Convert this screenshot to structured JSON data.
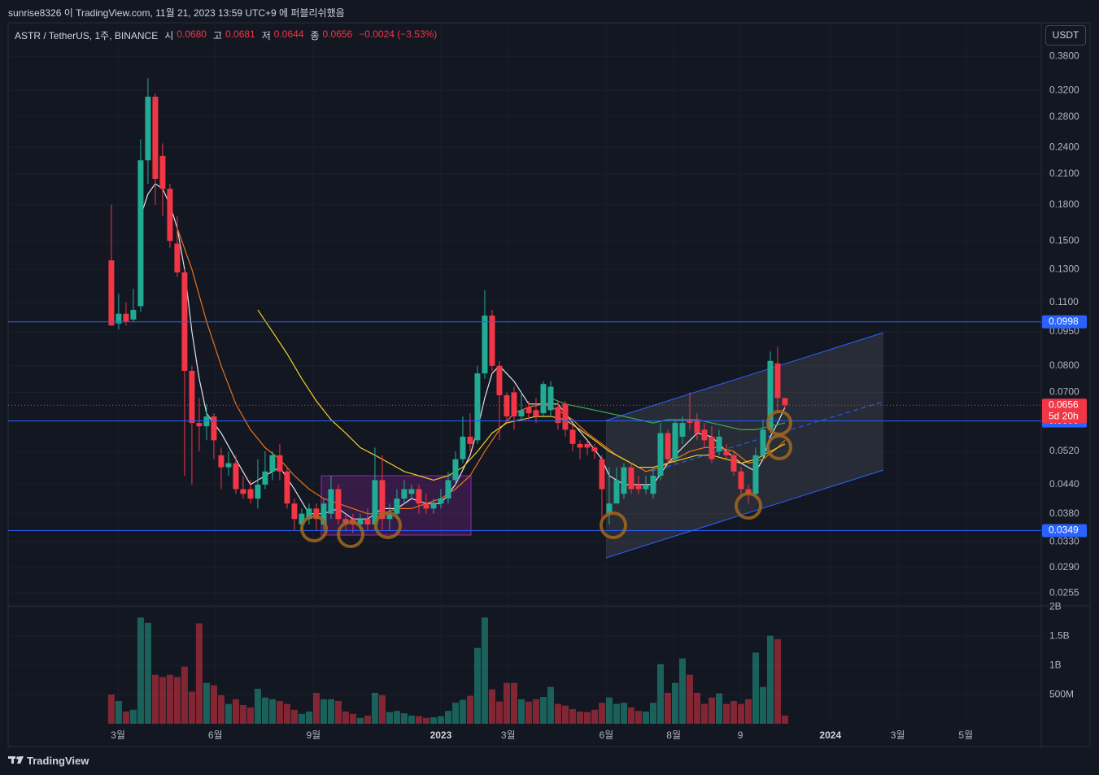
{
  "header": {
    "publisher": "sunrise8326 이 TradingView.com, 11월 21, 2023 13:59 UTC+9 에 퍼블리쉬했음",
    "symbol": "ASTR / TetherUS, 1주, BINANCE",
    "ohlc_names": [
      "시",
      "고",
      "저",
      "종"
    ],
    "ohlc_labels": [
      "0.0680",
      "0.0681",
      "0.0644",
      "0.0656"
    ],
    "change": "−0.0024 (−3.53%)",
    "currency": "USDT"
  },
  "chart_data": {
    "type": "candlestick",
    "log_scale": true,
    "grid": true,
    "up_color": "#22ab94",
    "down_color": "#f23645",
    "candles": [
      [
        0.136,
        0.18,
        0.098,
        0.098
      ],
      [
        0.099,
        0.115,
        0.096,
        0.104
      ],
      [
        0.104,
        0.11,
        0.098,
        0.1
      ],
      [
        0.101,
        0.118,
        0.1,
        0.106
      ],
      [
        0.108,
        0.25,
        0.105,
        0.225
      ],
      [
        0.225,
        0.34,
        0.2,
        0.31
      ],
      [
        0.31,
        0.315,
        0.18,
        0.205
      ],
      [
        0.23,
        0.245,
        0.17,
        0.195
      ],
      [
        0.195,
        0.2,
        0.145,
        0.15
      ],
      [
        0.148,
        0.17,
        0.125,
        0.128
      ],
      [
        0.128,
        0.13,
        0.046,
        0.078
      ],
      [
        0.078,
        0.08,
        0.044,
        0.06
      ],
      [
        0.06,
        0.068,
        0.052,
        0.059
      ],
      [
        0.059,
        0.066,
        0.055,
        0.062
      ],
      [
        0.062,
        0.063,
        0.05,
        0.055
      ],
      [
        0.051,
        0.053,
        0.043,
        0.048
      ],
      [
        0.048,
        0.052,
        0.046,
        0.049
      ],
      [
        0.049,
        0.051,
        0.042,
        0.043
      ],
      [
        0.043,
        0.046,
        0.041,
        0.042
      ],
      [
        0.043,
        0.045,
        0.04,
        0.041
      ],
      [
        0.041,
        0.05,
        0.039,
        0.044
      ],
      [
        0.044,
        0.052,
        0.043,
        0.047
      ],
      [
        0.047,
        0.052,
        0.045,
        0.051
      ],
      [
        0.051,
        0.054,
        0.045,
        0.047
      ],
      [
        0.047,
        0.048,
        0.039,
        0.04
      ],
      [
        0.04,
        0.041,
        0.035,
        0.037
      ],
      [
        0.036,
        0.039,
        0.035,
        0.038
      ],
      [
        0.037,
        0.04,
        0.036,
        0.039
      ],
      [
        0.039,
        0.04,
        0.035,
        0.037
      ],
      [
        0.036,
        0.041,
        0.035,
        0.04
      ],
      [
        0.038,
        0.046,
        0.037,
        0.043
      ],
      [
        0.043,
        0.044,
        0.036,
        0.037
      ],
      [
        0.037,
        0.038,
        0.035,
        0.036
      ],
      [
        0.037,
        0.038,
        0.0345,
        0.036
      ],
      [
        0.036,
        0.038,
        0.035,
        0.037
      ],
      [
        0.037,
        0.039,
        0.035,
        0.036
      ],
      [
        0.036,
        0.053,
        0.035,
        0.045
      ],
      [
        0.045,
        0.051,
        0.035,
        0.037
      ],
      [
        0.037,
        0.04,
        0.035,
        0.038
      ],
      [
        0.038,
        0.043,
        0.037,
        0.041
      ],
      [
        0.041,
        0.045,
        0.04,
        0.043
      ],
      [
        0.042,
        0.044,
        0.041,
        0.043
      ],
      [
        0.043,
        0.044,
        0.038,
        0.04
      ],
      [
        0.04,
        0.042,
        0.038,
        0.039
      ],
      [
        0.039,
        0.041,
        0.038,
        0.04
      ],
      [
        0.04,
        0.043,
        0.039,
        0.041
      ],
      [
        0.041,
        0.047,
        0.04,
        0.045
      ],
      [
        0.045,
        0.052,
        0.044,
        0.05
      ],
      [
        0.05,
        0.062,
        0.049,
        0.056
      ],
      [
        0.056,
        0.063,
        0.052,
        0.054
      ],
      [
        0.055,
        0.08,
        0.054,
        0.077
      ],
      [
        0.077,
        0.117,
        0.075,
        0.103
      ],
      [
        0.103,
        0.106,
        0.078,
        0.08
      ],
      [
        0.08,
        0.082,
        0.055,
        0.069
      ],
      [
        0.069,
        0.07,
        0.06,
        0.062
      ],
      [
        0.07,
        0.072,
        0.058,
        0.062
      ],
      [
        0.062,
        0.07,
        0.061,
        0.064
      ],
      [
        0.065,
        0.067,
        0.061,
        0.063
      ],
      [
        0.064,
        0.068,
        0.06,
        0.062
      ],
      [
        0.063,
        0.074,
        0.062,
        0.073
      ],
      [
        0.064,
        0.074,
        0.062,
        0.072
      ],
      [
        0.065,
        0.067,
        0.058,
        0.06
      ],
      [
        0.066,
        0.067,
        0.056,
        0.058
      ],
      [
        0.058,
        0.06,
        0.052,
        0.054
      ],
      [
        0.054,
        0.055,
        0.05,
        0.053
      ],
      [
        0.054,
        0.055,
        0.051,
        0.053
      ],
      [
        0.053,
        0.054,
        0.05,
        0.052
      ],
      [
        0.05,
        0.051,
        0.037,
        0.043
      ],
      [
        0.038,
        0.048,
        0.036,
        0.04
      ],
      [
        0.04,
        0.048,
        0.04,
        0.045
      ],
      [
        0.042,
        0.049,
        0.041,
        0.048
      ],
      [
        0.048,
        0.049,
        0.042,
        0.043
      ],
      [
        0.044,
        0.046,
        0.042,
        0.043
      ],
      [
        0.043,
        0.046,
        0.042,
        0.044
      ],
      [
        0.042,
        0.048,
        0.041,
        0.046
      ],
      [
        0.046,
        0.06,
        0.045,
        0.057
      ],
      [
        0.057,
        0.058,
        0.049,
        0.05
      ],
      [
        0.05,
        0.061,
        0.049,
        0.06
      ],
      [
        0.056,
        0.062,
        0.054,
        0.06
      ],
      [
        0.061,
        0.07,
        0.058,
        0.06
      ],
      [
        0.061,
        0.063,
        0.055,
        0.057
      ],
      [
        0.058,
        0.06,
        0.053,
        0.055
      ],
      [
        0.056,
        0.059,
        0.049,
        0.05
      ],
      [
        0.052,
        0.058,
        0.051,
        0.056
      ],
      [
        0.052,
        0.054,
        0.05,
        0.051
      ],
      [
        0.051,
        0.052,
        0.046,
        0.047
      ],
      [
        0.047,
        0.048,
        0.041,
        0.043
      ],
      [
        0.043,
        0.044,
        0.04,
        0.042
      ],
      [
        0.042,
        0.053,
        0.041,
        0.051
      ],
      [
        0.051,
        0.061,
        0.05,
        0.058
      ],
      [
        0.058,
        0.086,
        0.057,
        0.082
      ],
      [
        0.081,
        0.088,
        0.063,
        0.068
      ],
      [
        0.068,
        0.0681,
        0.0644,
        0.0656
      ]
    ],
    "volumes": [
      500000000.0,
      390000000.0,
      210000000.0,
      240000000.0,
      1820000000.0,
      1730000000.0,
      840000000.0,
      800000000.0,
      840000000.0,
      800000000.0,
      980000000.0,
      550000000.0,
      1720000000.0,
      700000000.0,
      660000000.0,
      490000000.0,
      340000000.0,
      420000000.0,
      320000000.0,
      280000000.0,
      600000000.0,
      450000000.0,
      420000000.0,
      390000000.0,
      340000000.0,
      240000000.0,
      170000000.0,
      210000000.0,
      530000000.0,
      420000000.0,
      420000000.0,
      390000000.0,
      210000000.0,
      170000000.0,
      100000000.0,
      140000000.0,
      530000000.0,
      490000000.0,
      200000000.0,
      220000000.0,
      180000000.0,
      140000000.0,
      130000000.0,
      100000000.0,
      110000000.0,
      130000000.0,
      220000000.0,
      360000000.0,
      410000000.0,
      480000000.0,
      1300000000.0,
      1820000000.0,
      590000000.0,
      380000000.0,
      700000000.0,
      700000000.0,
      420000000.0,
      380000000.0,
      420000000.0,
      460000000.0,
      630000000.0,
      340000000.0,
      310000000.0,
      250000000.0,
      210000000.0,
      200000000.0,
      240000000.0,
      360000000.0,
      450000000.0,
      340000000.0,
      360000000.0,
      280000000.0,
      220000000.0,
      210000000.0,
      360000000.0,
      1020000000.0,
      530000000.0,
      700000000.0,
      1120000000.0,
      840000000.0,
      530000000.0,
      340000000.0,
      450000000.0,
      520000000.0,
      340000000.0,
      390000000.0,
      340000000.0,
      420000000.0,
      1220000000.0,
      630000000.0,
      1510000000.0,
      1450000000.0,
      140000000.0
    ],
    "xlim": [
      -14.1,
      127
    ],
    "xticks": [
      {
        "value": 0.9,
        "label": "3월"
      },
      {
        "value": 14.2,
        "label": "6월"
      },
      {
        "value": 27.6,
        "label": "9월"
      },
      {
        "value": 45,
        "label": "2023"
      },
      {
        "value": 54.2,
        "label": "3월"
      },
      {
        "value": 67.6,
        "label": "6월"
      },
      {
        "value": 76.8,
        "label": "8월"
      },
      {
        "value": 85.9,
        "label": "9"
      },
      {
        "value": 98.2,
        "label": "2024"
      },
      {
        "value": 107.4,
        "label": "3월"
      },
      {
        "value": 116.7,
        "label": "5월"
      }
    ],
    "ylim": [
      0.0239,
      0.446
    ],
    "yticks": [
      {
        "value": 0.38,
        "label": "0.3800"
      },
      {
        "value": 0.32,
        "label": "0.3200"
      },
      {
        "value": 0.28,
        "label": "0.2800"
      },
      {
        "value": 0.24,
        "label": "0.2400"
      },
      {
        "value": 0.21,
        "label": "0.2100"
      },
      {
        "value": 0.18,
        "label": "0.1800"
      },
      {
        "value": 0.15,
        "label": "0.1500"
      },
      {
        "value": 0.13,
        "label": "0.1300"
      },
      {
        "value": 0.11,
        "label": "0.1100"
      },
      {
        "value": 0.095,
        "label": "0.0950"
      },
      {
        "value": 0.08,
        "label": "0.0800"
      },
      {
        "value": 0.07,
        "label": "0.0700"
      },
      {
        "value": 0.052,
        "label": "0.0520"
      },
      {
        "value": 0.044,
        "label": "0.0440"
      },
      {
        "value": 0.038,
        "label": "0.0380"
      },
      {
        "value": 0.033,
        "label": "0.0330"
      },
      {
        "value": 0.029,
        "label": "0.0290"
      },
      {
        "value": 0.0255,
        "label": "0.0255"
      }
    ],
    "volume_ylim": [
      0,
      2020000000.0
    ],
    "volume_yticks": [
      {
        "value": 500000000.0,
        "label": "500M"
      },
      {
        "value": 1000000000.0,
        "label": "1B"
      },
      {
        "value": 1500000000.0,
        "label": "1.5B"
      },
      {
        "value": 2000000000.0,
        "label": "2B"
      }
    ],
    "moving_averages": [
      {
        "color": "#e0e3eb",
        "x": [
          4,
          5,
          6,
          7,
          8,
          9,
          10,
          11,
          12,
          13,
          15,
          17,
          19,
          21,
          23,
          25,
          27,
          29,
          31,
          33,
          35,
          37,
          39,
          41,
          43,
          45,
          47,
          49,
          50,
          51,
          52,
          53,
          55,
          57,
          59,
          61,
          63,
          65,
          67,
          68,
          70,
          72,
          74,
          76,
          78,
          80,
          82,
          84,
          86,
          88,
          89,
          90,
          91,
          92
        ],
        "values": [
          0.17,
          0.19,
          0.2,
          0.195,
          0.18,
          0.16,
          0.13,
          0.095,
          0.075,
          0.063,
          0.057,
          0.05,
          0.044,
          0.046,
          0.048,
          0.043,
          0.038,
          0.038,
          0.039,
          0.037,
          0.037,
          0.039,
          0.039,
          0.041,
          0.04,
          0.04,
          0.044,
          0.051,
          0.058,
          0.068,
          0.077,
          0.08,
          0.074,
          0.066,
          0.066,
          0.066,
          0.06,
          0.055,
          0.05,
          0.046,
          0.044,
          0.044,
          0.044,
          0.049,
          0.053,
          0.057,
          0.056,
          0.052,
          0.049,
          0.047,
          0.05,
          0.056,
          0.06,
          0.065
        ]
      },
      {
        "color": "#e8741c",
        "x": [
          9,
          11,
          13,
          15,
          17,
          19,
          21,
          23,
          25,
          27,
          29,
          31,
          33,
          35,
          37,
          39,
          41,
          43,
          45,
          47,
          49,
          51,
          53,
          55,
          57,
          59,
          61,
          63,
          65,
          67,
          69,
          71,
          73,
          75,
          77,
          79,
          81,
          83,
          85,
          87,
          89,
          91,
          92
        ],
        "values": [
          0.16,
          0.13,
          0.1,
          0.08,
          0.066,
          0.058,
          0.053,
          0.05,
          0.046,
          0.043,
          0.041,
          0.04,
          0.039,
          0.038,
          0.038,
          0.039,
          0.039,
          0.04,
          0.041,
          0.043,
          0.046,
          0.052,
          0.058,
          0.063,
          0.065,
          0.066,
          0.064,
          0.061,
          0.057,
          0.054,
          0.051,
          0.049,
          0.047,
          0.048,
          0.05,
          0.052,
          0.053,
          0.053,
          0.052,
          0.049,
          0.05,
          0.053,
          0.055
        ]
      },
      {
        "color": "#f2d024",
        "x": [
          20,
          22,
          24,
          26,
          28,
          30,
          32,
          34,
          36,
          38,
          40,
          42,
          44,
          46,
          48,
          50,
          52,
          54,
          56,
          58,
          60,
          62,
          64,
          66,
          68,
          70,
          72,
          74,
          76,
          78,
          80,
          82,
          84,
          86,
          88,
          90,
          92
        ],
        "values": [
          0.106,
          0.095,
          0.085,
          0.075,
          0.067,
          0.061,
          0.057,
          0.053,
          0.051,
          0.049,
          0.047,
          0.046,
          0.045,
          0.046,
          0.048,
          0.052,
          0.057,
          0.06,
          0.061,
          0.062,
          0.062,
          0.061,
          0.058,
          0.055,
          0.052,
          0.05,
          0.048,
          0.048,
          0.049,
          0.05,
          0.051,
          0.051,
          0.05,
          0.049,
          0.05,
          0.052,
          0.054
        ]
      },
      {
        "color": "#35b34a",
        "x": [
          60,
          62,
          64,
          66,
          68,
          70,
          72,
          74,
          76,
          78,
          80,
          82,
          84,
          86,
          88,
          90,
          92
        ],
        "values": [
          0.068,
          0.066,
          0.065,
          0.064,
          0.063,
          0.062,
          0.061,
          0.06,
          0.061,
          0.061,
          0.061,
          0.06,
          0.059,
          0.058,
          0.058,
          0.059,
          0.06
        ]
      }
    ],
    "hlines": [
      0.0998,
      0.0606,
      0.0349
    ],
    "hline_color": "#2962ff",
    "last_price": 0.0656,
    "countdown": "5d 20h"
  },
  "footer": {
    "brand": "TradingView"
  }
}
